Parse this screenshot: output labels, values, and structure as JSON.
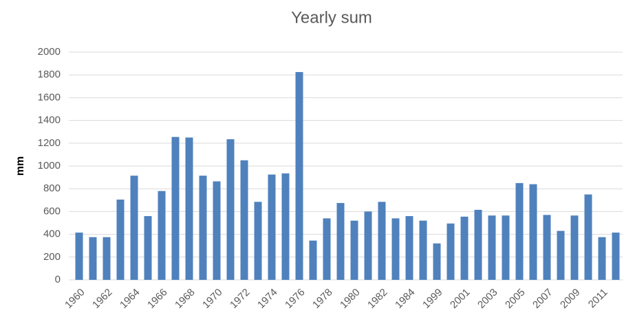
{
  "chart_data": {
    "type": "bar",
    "title": "Yearly sum",
    "y_label": "mm",
    "categories": [
      "1960",
      null,
      "1962",
      null,
      "1964",
      null,
      "1966",
      null,
      "1968",
      null,
      "1970",
      null,
      "1972",
      null,
      "1974",
      null,
      "1976",
      null,
      "1978",
      null,
      "1980",
      null,
      "1982",
      null,
      "1984",
      null,
      "1999",
      null,
      "2001",
      null,
      "2003",
      null,
      "2005",
      null,
      "2007",
      null,
      "2009",
      null,
      "2011",
      null
    ],
    "values": [
      415,
      375,
      375,
      705,
      915,
      560,
      780,
      1255,
      1250,
      915,
      865,
      1235,
      1050,
      685,
      925,
      935,
      1825,
      345,
      540,
      675,
      520,
      600,
      685,
      540,
      560,
      520,
      320,
      495,
      555,
      615,
      565,
      565,
      850,
      840,
      570,
      430,
      565,
      750,
      375,
      415
    ],
    "color": "#4f81bd",
    "ylim": [
      0,
      2000
    ],
    "yticks": [
      0,
      200,
      400,
      600,
      800,
      1000,
      1200,
      1400,
      1600,
      1800,
      2000
    ],
    "grid": true
  }
}
